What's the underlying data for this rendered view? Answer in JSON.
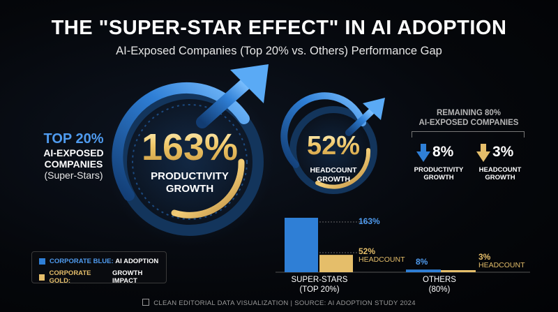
{
  "header": {
    "title": "THE \"SUPER-STAR EFFECT\" IN AI ADOPTION",
    "subtitle": "AI-Exposed Companies (Top 20% vs. Others) Performance Gap"
  },
  "left_group": {
    "line1": "TOP 20%",
    "line2": "AI-EXPOSED",
    "line3": "COMPANIES",
    "line4": "(Super-Stars)"
  },
  "gauge_productivity": {
    "value_text": "163%",
    "label_line1": "PRODUCTIVITY",
    "label_line2": "GROWTH"
  },
  "gauge_headcount": {
    "value_text": "52%",
    "label_line1": "HEADCOUNT",
    "label_line2": "GROWTH"
  },
  "remaining": {
    "line1": "REMAINING 80%",
    "line2": "AI-EXPOSED COMPANIES",
    "productivity_value": "8%",
    "productivity_line1": "PRODUCTIVITY",
    "productivity_line2": "GROWTH",
    "headcount_value": "3%",
    "headcount_line1": "HEADCOUNT",
    "headcount_line2": "GROWTH"
  },
  "legend": {
    "blue_prefix": "CORPORATE BLUE:",
    "blue_text": "AI ADOPTION",
    "gold_prefix": "CORPORATE GOLD:",
    "gold_text": "GROWTH IMPACT"
  },
  "colors": {
    "blue": "#2f7fd6",
    "gold": "#e5be6a",
    "background": "#05070b"
  },
  "chart_data": {
    "type": "bar",
    "categories": [
      "SUPER-STARS (TOP 20%)",
      "OTHERS (80%)"
    ],
    "category_line1": [
      "SUPER-STARS",
      "OTHERS"
    ],
    "category_line2": [
      "(TOP 20%)",
      "(80%)"
    ],
    "series": [
      {
        "name": "AI ADOPTION",
        "color": "#2f7fd6",
        "values": [
          163,
          8
        ]
      },
      {
        "name": "GROWTH IMPACT",
        "color": "#e5be6a",
        "values": [
          52,
          3
        ]
      }
    ],
    "annotations": [
      {
        "category": 0,
        "value_label": "163%",
        "suffix": ""
      },
      {
        "category": 0,
        "value_label": "52%",
        "suffix": "HEADCOUNT"
      },
      {
        "category": 1,
        "value_label": "8%",
        "suffix": ""
      },
      {
        "category": 1,
        "value_label": "3%",
        "suffix": "HEADCOUNT"
      }
    ],
    "ylim": [
      0,
      163
    ],
    "grid": false
  },
  "footer": {
    "text": "CLEAN EDITORIAL DATA VISUALIZATION  |  SOURCE: AI ADOPTION STUDY 2024"
  }
}
